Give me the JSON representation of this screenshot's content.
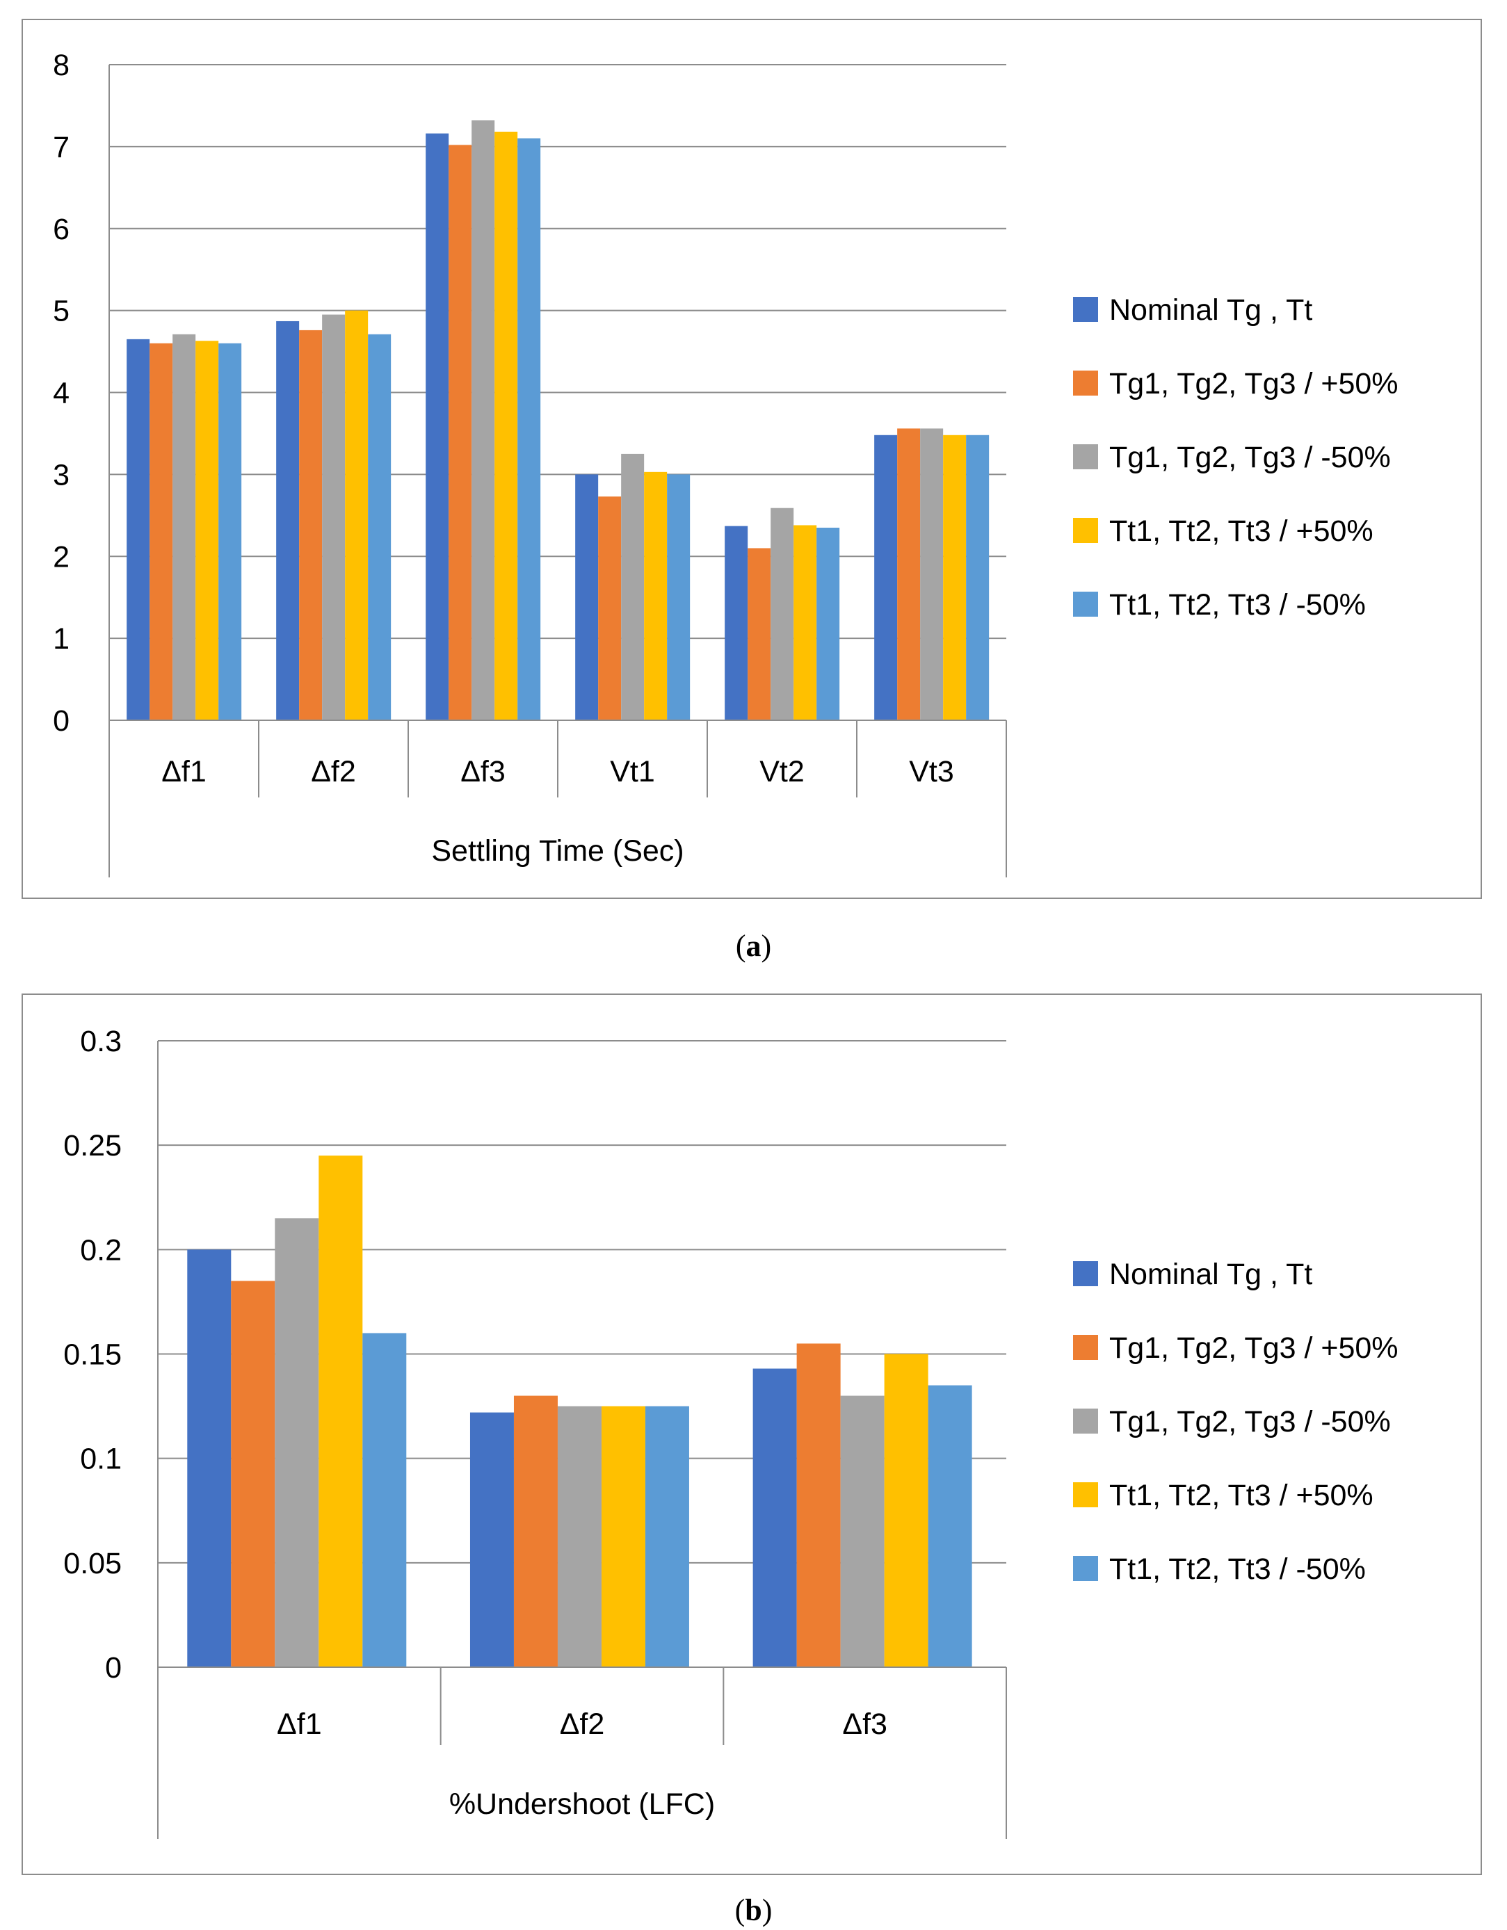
{
  "legend": [
    "Nominal Tg , Tt",
    "Tg1, Tg2, Tg3 / +50%",
    "Tg1, Tg2, Tg3 / -50%",
    "Tt1, Tt2, Tt3 / +50%",
    "Tt1, Tt2, Tt3 / -50%"
  ],
  "colors": [
    "#4472C4",
    "#ED7D31",
    "#A5A5A5",
    "#FFC000",
    "#5B9BD5"
  ],
  "chart_data": [
    {
      "type": "bar",
      "panel": "a",
      "group_label": "Settling Time (Sec)",
      "categories": [
        "Δf1",
        "Δf2",
        "Δf3",
        "Vt1",
        "Vt2",
        "Vt3"
      ],
      "ylim": [
        0,
        8
      ],
      "yticks": [
        "0",
        "1",
        "2",
        "3",
        "4",
        "5",
        "6",
        "7",
        "8"
      ],
      "series": [
        {
          "name": "Nominal Tg , Tt",
          "values": [
            4.65,
            4.87,
            7.16,
            3.0,
            2.37,
            3.48
          ]
        },
        {
          "name": "Tg1, Tg2, Tg3 / +50%",
          "values": [
            4.6,
            4.76,
            7.02,
            2.73,
            2.1,
            3.56
          ]
        },
        {
          "name": "Tg1, Tg2, Tg3 / -50%",
          "values": [
            4.71,
            4.95,
            7.32,
            3.25,
            2.59,
            3.56
          ]
        },
        {
          "name": "Tt1, Tt2, Tt3 / +50%",
          "values": [
            4.63,
            5.0,
            7.18,
            3.03,
            2.38,
            3.48
          ]
        },
        {
          "name": "Tt1, Tt2, Tt3 / -50%",
          "values": [
            4.6,
            4.71,
            7.1,
            3.0,
            2.35,
            3.48
          ]
        }
      ]
    },
    {
      "type": "bar",
      "panel": "b",
      "group_label": "%Undershoot (LFC)",
      "categories": [
        "Δf1",
        "Δf2",
        "Δf3"
      ],
      "ylim": [
        0,
        0.3
      ],
      "yticks": [
        "0",
        "0.05",
        "0.1",
        "0.15",
        "0.2",
        "0.25",
        "0.3"
      ],
      "series": [
        {
          "name": "Nominal Tg , Tt",
          "values": [
            0.2,
            0.122,
            0.143
          ]
        },
        {
          "name": "Tg1, Tg2, Tg3 / +50%",
          "values": [
            0.185,
            0.13,
            0.155
          ]
        },
        {
          "name": "Tg1, Tg2, Tg3 / -50%",
          "values": [
            0.215,
            0.125,
            0.13
          ]
        },
        {
          "name": "Tt1, Tt2, Tt3 / +50%",
          "values": [
            0.245,
            0.125,
            0.15
          ]
        },
        {
          "name": "Tt1, Tt2, Tt3 / -50%",
          "values": [
            0.16,
            0.125,
            0.135
          ]
        }
      ]
    }
  ],
  "captions": {
    "a": {
      "open": "(",
      "letter": "a",
      "close": ")"
    },
    "b": {
      "open": "(",
      "letter": "b",
      "close": ")"
    }
  }
}
